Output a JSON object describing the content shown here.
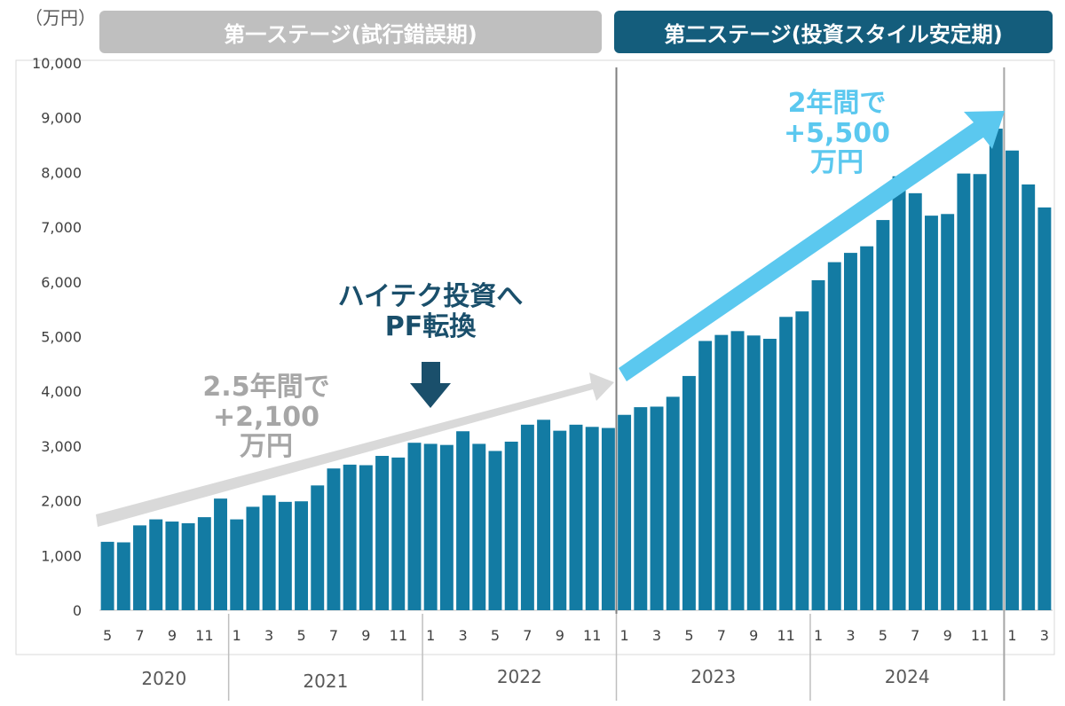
{
  "unit_label": "（万円）",
  "stages": {
    "first": "第一ステージ(試行錯誤期)",
    "second": "第二ステージ(投資スタイル安定期)"
  },
  "annotations": {
    "grey": {
      "line1": "2.5年間で",
      "line2": "+2,100",
      "line3": "万円"
    },
    "blue": {
      "line1": "2年間で",
      "line2": "+5,500",
      "line3": "万円"
    },
    "dark": {
      "line1": "ハイテク投資へ",
      "line2": "PF転換"
    }
  },
  "colors": {
    "bar": "#137ba3",
    "stage1": "#bfbfbf",
    "stage2": "#145d7c",
    "arrow_grey": "#d9d9d9",
    "arrow_blue": "#5bc8ef",
    "arrow_dark": "#1a4f6b",
    "grey_text": "#a6a6a6",
    "blue_text": "#5bc8ef"
  },
  "chart_data": {
    "type": "bar",
    "ylim": [
      0,
      10000
    ],
    "yticks": [
      "0",
      "1,000",
      "2,000",
      "3,000",
      "4,000",
      "5,000",
      "6,000",
      "7,000",
      "8,000",
      "9,000",
      "10,000"
    ],
    "grid": false,
    "categories": [
      "5",
      "6",
      "7",
      "8",
      "9",
      "10",
      "11",
      "12",
      "1",
      "2",
      "3",
      "4",
      "5",
      "6",
      "7",
      "8",
      "9",
      "10",
      "11",
      "12",
      "1",
      "2",
      "3",
      "4",
      "5",
      "6",
      "7",
      "8",
      "9",
      "10",
      "11",
      "12",
      "1",
      "2",
      "3",
      "4",
      "5",
      "6",
      "7",
      "8",
      "9",
      "10",
      "11",
      "12",
      "1",
      "2",
      "3",
      "4",
      "5",
      "6",
      "7",
      "8",
      "9",
      "10",
      "11",
      "12",
      "1",
      "2",
      "3"
    ],
    "values": [
      1250,
      1240,
      1550,
      1660,
      1620,
      1590,
      1700,
      2040,
      1660,
      1890,
      2100,
      1980,
      1990,
      2280,
      2590,
      2660,
      2650,
      2820,
      2790,
      3060,
      3040,
      3020,
      3270,
      3040,
      2910,
      3080,
      3390,
      3480,
      3280,
      3390,
      3350,
      3330,
      3570,
      3710,
      3720,
      3900,
      4280,
      4920,
      5030,
      5100,
      5020,
      4960,
      5360,
      5460,
      6030,
      6360,
      6530,
      6650,
      7130,
      7930,
      7620,
      7210,
      7240,
      7980,
      7970,
      8800,
      8400,
      7780,
      7360
    ],
    "x_tick_labels": [
      "5",
      "7",
      "9",
      "11",
      "1",
      "3",
      "5",
      "7",
      "9",
      "11",
      "1",
      "3",
      "5",
      "7",
      "9",
      "11",
      "1",
      "3",
      "5",
      "7",
      "9",
      "11",
      "1",
      "3",
      "5",
      "7",
      "9",
      "11",
      "1",
      "3"
    ],
    "years": [
      "2020",
      "2021",
      "2022",
      "2023",
      "2024"
    ]
  }
}
